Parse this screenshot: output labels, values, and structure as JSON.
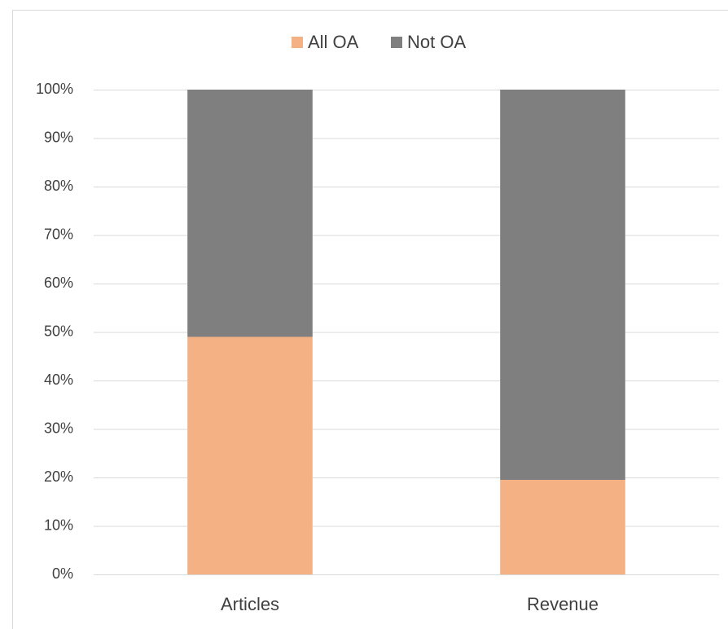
{
  "chart_data": {
    "type": "stacked_bar",
    "categories": [
      "Articles",
      "Revenue"
    ],
    "series": [
      {
        "name": "All OA",
        "color": "#f4b183",
        "values": [
          49,
          19.5
        ]
      },
      {
        "name": "Not OA",
        "color": "#7f7f7f",
        "values": [
          51,
          80.5
        ]
      }
    ],
    "ylim": [
      0,
      100
    ],
    "yticks": [
      {
        "value": 0,
        "label": "0%"
      },
      {
        "value": 10,
        "label": "10%"
      },
      {
        "value": 20,
        "label": "20%"
      },
      {
        "value": 30,
        "label": "30%"
      },
      {
        "value": 40,
        "label": "40%"
      },
      {
        "value": 50,
        "label": "50%"
      },
      {
        "value": 60,
        "label": "60%"
      },
      {
        "value": 70,
        "label": "70%"
      },
      {
        "value": 80,
        "label": "80%"
      },
      {
        "value": 90,
        "label": "90%"
      },
      {
        "value": 100,
        "label": "100%"
      }
    ],
    "grid": true,
    "legend": "top"
  }
}
